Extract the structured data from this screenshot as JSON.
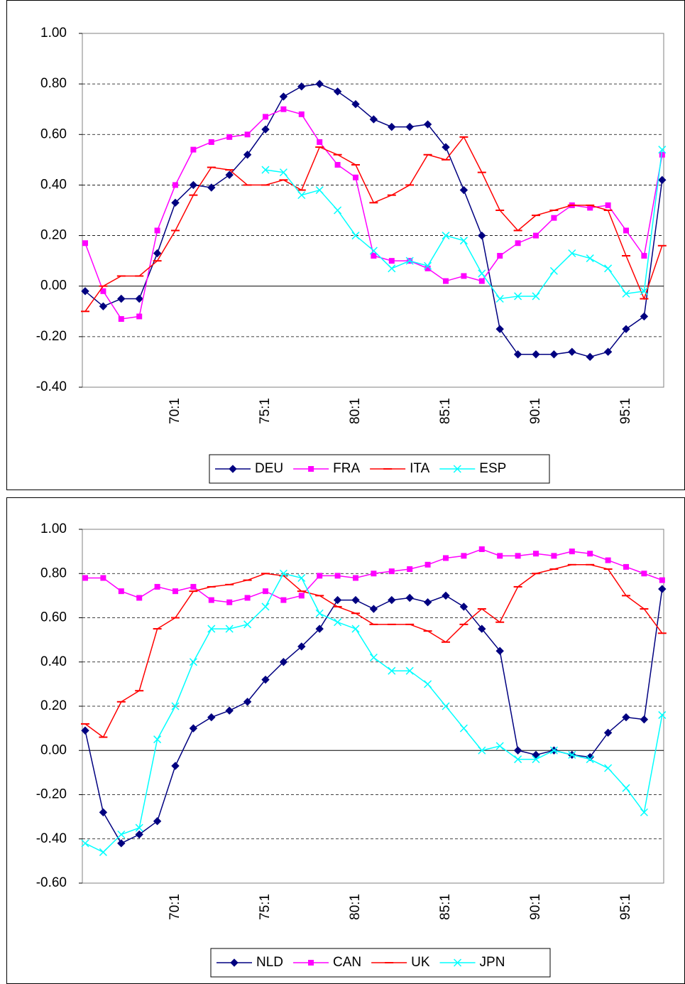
{
  "chart_data": [
    {
      "type": "line",
      "grid": true,
      "legend": "bottom",
      "categories": [
        null,
        null,
        null,
        null,
        null,
        "70:1",
        null,
        null,
        null,
        null,
        "75:1",
        null,
        null,
        null,
        null,
        "80:1",
        null,
        null,
        null,
        null,
        "85:1",
        null,
        null,
        null,
        null,
        "90:1",
        null,
        null,
        null,
        null,
        "95:1",
        null,
        null
      ],
      "ylim": [
        -0.4,
        1.0
      ],
      "yticks": [
        {
          "value": -0.4,
          "label": "-0.40"
        },
        {
          "value": -0.2,
          "label": "-0.20"
        },
        {
          "value": 0,
          "label": "0.00"
        },
        {
          "value": 0.2,
          "label": "0.20"
        },
        {
          "value": 0.4,
          "label": "0.40"
        },
        {
          "value": 0.6,
          "label": "0.60"
        },
        {
          "value": 0.8,
          "label": "0.80"
        },
        {
          "value": 1.0,
          "label": "1.00"
        }
      ],
      "series": [
        {
          "name": "DEU",
          "color": "#000080",
          "marker": "diamond",
          "values": [
            -0.02,
            -0.08,
            -0.05,
            -0.05,
            0.13,
            0.33,
            0.4,
            0.39,
            0.44,
            0.52,
            0.62,
            0.75,
            0.79,
            0.8,
            0.77,
            0.72,
            0.66,
            0.63,
            0.63,
            0.64,
            0.55,
            0.38,
            0.2,
            -0.17,
            -0.27,
            -0.27,
            -0.27,
            -0.26,
            -0.28,
            -0.26,
            -0.17,
            -0.12,
            0.42
          ]
        },
        {
          "name": "FRA",
          "color": "#ff00ff",
          "marker": "square",
          "values": [
            0.17,
            -0.02,
            -0.13,
            -0.12,
            0.22,
            0.4,
            0.54,
            0.57,
            0.59,
            0.6,
            0.67,
            0.7,
            0.68,
            0.57,
            0.48,
            0.43,
            0.12,
            0.1,
            0.1,
            0.07,
            0.02,
            0.04,
            0.02,
            0.12,
            0.17,
            0.2,
            0.27,
            0.32,
            0.31,
            0.32,
            0.22,
            0.12,
            0.52
          ]
        },
        {
          "name": "ITA",
          "color": "#ff0000",
          "marker": "dash",
          "values": [
            -0.1,
            0.0,
            0.04,
            0.04,
            0.1,
            0.22,
            0.36,
            0.47,
            0.46,
            0.4,
            0.4,
            0.42,
            0.38,
            0.55,
            0.52,
            0.48,
            0.33,
            0.36,
            0.4,
            0.52,
            0.5,
            0.59,
            0.45,
            0.3,
            0.22,
            0.28,
            0.3,
            0.32,
            0.32,
            0.3,
            0.12,
            -0.05,
            0.16
          ]
        },
        {
          "name": "ESP",
          "color": "#00ffff",
          "marker": "x",
          "values": [
            null,
            null,
            null,
            null,
            null,
            null,
            null,
            null,
            null,
            null,
            0.46,
            0.45,
            0.36,
            0.38,
            0.3,
            0.2,
            0.14,
            0.07,
            0.1,
            0.08,
            0.2,
            0.18,
            0.05,
            -0.05,
            -0.04,
            -0.04,
            0.06,
            0.13,
            0.11,
            0.07,
            -0.03,
            -0.02,
            0.54
          ]
        }
      ]
    },
    {
      "type": "line",
      "grid": true,
      "legend": "bottom",
      "categories": [
        null,
        null,
        null,
        null,
        null,
        "70:1",
        null,
        null,
        null,
        null,
        "75:1",
        null,
        null,
        null,
        null,
        "80:1",
        null,
        null,
        null,
        null,
        "85:1",
        null,
        null,
        null,
        null,
        "90:1",
        null,
        null,
        null,
        null,
        "95:1",
        null,
        null
      ],
      "ylim": [
        -0.6,
        1.0
      ],
      "yticks": [
        {
          "value": -0.6,
          "label": "-0.60"
        },
        {
          "value": -0.4,
          "label": "-0.40"
        },
        {
          "value": -0.2,
          "label": "-0.20"
        },
        {
          "value": 0,
          "label": "0.00"
        },
        {
          "value": 0.2,
          "label": "0.20"
        },
        {
          "value": 0.4,
          "label": "0.40"
        },
        {
          "value": 0.6,
          "label": "0.60"
        },
        {
          "value": 0.8,
          "label": "0.80"
        },
        {
          "value": 1.0,
          "label": "1.00"
        }
      ],
      "series": [
        {
          "name": "NLD",
          "color": "#000080",
          "marker": "diamond",
          "values": [
            0.09,
            -0.28,
            -0.42,
            -0.38,
            -0.32,
            -0.07,
            0.1,
            0.15,
            0.18,
            0.22,
            0.32,
            0.4,
            0.47,
            0.55,
            0.68,
            0.68,
            0.64,
            0.68,
            0.69,
            0.67,
            0.7,
            0.65,
            0.55,
            0.45,
            0.0,
            -0.02,
            0.0,
            -0.02,
            -0.03,
            0.08,
            0.15,
            0.14,
            0.73
          ]
        },
        {
          "name": "CAN",
          "color": "#ff00ff",
          "marker": "square",
          "values": [
            0.78,
            0.78,
            0.72,
            0.69,
            0.74,
            0.72,
            0.74,
            0.68,
            0.67,
            0.69,
            0.72,
            0.68,
            0.7,
            0.79,
            0.79,
            0.78,
            0.8,
            0.81,
            0.82,
            0.84,
            0.87,
            0.88,
            0.91,
            0.88,
            0.88,
            0.89,
            0.88,
            0.9,
            0.89,
            0.86,
            0.83,
            0.8,
            0.77
          ]
        },
        {
          "name": "UK",
          "color": "#ff0000",
          "marker": "dash",
          "values": [
            0.12,
            0.06,
            0.22,
            0.27,
            0.55,
            0.6,
            0.72,
            0.74,
            0.75,
            0.77,
            0.8,
            0.79,
            0.72,
            0.7,
            0.65,
            0.62,
            0.57,
            0.57,
            0.57,
            0.54,
            0.49,
            0.57,
            0.64,
            0.58,
            0.74,
            0.8,
            0.82,
            0.84,
            0.84,
            0.82,
            0.7,
            0.64,
            0.53
          ]
        },
        {
          "name": "JPN",
          "color": "#00ffff",
          "marker": "x",
          "values": [
            -0.42,
            -0.46,
            -0.38,
            -0.35,
            0.05,
            0.2,
            0.4,
            0.55,
            0.55,
            0.57,
            0.65,
            0.8,
            0.78,
            0.62,
            0.58,
            0.55,
            0.42,
            0.36,
            0.36,
            0.3,
            0.2,
            0.1,
            0.0,
            0.02,
            -0.04,
            -0.04,
            0.0,
            -0.02,
            -0.04,
            -0.08,
            -0.17,
            -0.28,
            0.16
          ]
        }
      ]
    }
  ]
}
